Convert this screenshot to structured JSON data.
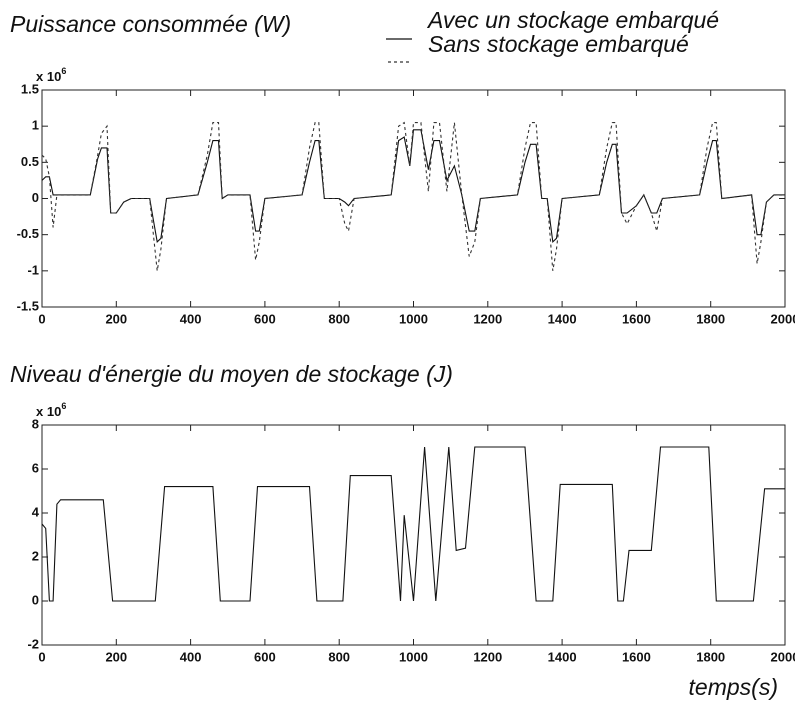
{
  "chart_data": [
    {
      "type": "line",
      "title": "Puissance consommée (W)",
      "y_scale_label": "x 10",
      "y_scale_exponent": "6",
      "x": [
        0,
        10,
        20,
        30,
        40,
        130,
        150,
        160,
        175,
        185,
        200,
        220,
        240,
        290,
        300,
        310,
        320,
        335,
        420,
        445,
        460,
        475,
        485,
        500,
        560,
        575,
        585,
        600,
        700,
        720,
        735,
        745,
        760,
        800,
        815,
        825,
        840,
        940,
        960,
        975,
        990,
        1000,
        1020,
        1040,
        1055,
        1070,
        1090,
        1110,
        1130,
        1150,
        1165,
        1180,
        1280,
        1300,
        1315,
        1330,
        1345,
        1360,
        1375,
        1385,
        1400,
        1500,
        1520,
        1535,
        1545,
        1560,
        1575,
        1600,
        1620,
        1640,
        1655,
        1670,
        1770,
        1790,
        1805,
        1815,
        1830,
        1910,
        1925,
        1935,
        1950,
        1970,
        2000
      ],
      "series": [
        {
          "name": "Avec un stockage embarqué",
          "color": "#111111",
          "linestyle": "solid",
          "values": [
            0.25,
            0.3,
            0.3,
            0.05,
            0.05,
            0.05,
            0.55,
            0.7,
            0.7,
            -0.2,
            -0.2,
            -0.05,
            0,
            0,
            -0.3,
            -0.6,
            -0.55,
            0,
            0.05,
            0.5,
            0.8,
            0.8,
            0,
            0.05,
            0.05,
            -0.45,
            -0.45,
            0,
            0.05,
            0.5,
            0.8,
            0.8,
            0,
            0,
            -0.05,
            -0.1,
            0,
            0.05,
            0.8,
            0.85,
            0.45,
            0.95,
            0.95,
            0.4,
            0.8,
            0.8,
            0.25,
            0.45,
            0.05,
            -0.45,
            -0.45,
            0,
            0.05,
            0.5,
            0.75,
            0.75,
            0,
            0,
            -0.6,
            -0.55,
            0,
            0.05,
            0.5,
            0.75,
            0.75,
            -0.2,
            -0.2,
            -0.1,
            0.05,
            -0.2,
            -0.2,
            0,
            0.05,
            0.5,
            0.8,
            0.8,
            0,
            0.05,
            -0.5,
            -0.5,
            -0.05,
            0.05,
            0.05
          ]
        },
        {
          "name": "Sans stockage embarqué",
          "color": "#333333",
          "linestyle": "dashed",
          "values": [
            0.6,
            0.55,
            0.3,
            -0.4,
            0.05,
            0.05,
            0.6,
            0.9,
            1.0,
            -0.2,
            -0.2,
            -0.05,
            0,
            0,
            -0.5,
            -1.0,
            -0.7,
            0,
            0.05,
            0.6,
            1.05,
            1.05,
            0,
            0.05,
            0.05,
            -0.85,
            -0.6,
            0,
            0.05,
            0.7,
            1.05,
            1.05,
            0,
            0,
            -0.35,
            -0.45,
            0,
            0.05,
            1.0,
            1.05,
            0.45,
            1.05,
            1.05,
            0.1,
            1.05,
            1.05,
            0.1,
            1.05,
            0.05,
            -0.8,
            -0.6,
            0,
            0.05,
            0.7,
            1.05,
            1.05,
            0,
            0,
            -1.0,
            -0.7,
            0,
            0.05,
            0.7,
            1.05,
            1.05,
            -0.2,
            -0.35,
            -0.1,
            0.05,
            -0.2,
            -0.45,
            0,
            0.05,
            0.7,
            1.05,
            1.05,
            0,
            0.05,
            -0.9,
            -0.6,
            -0.05,
            0.05,
            0.05
          ]
        }
      ],
      "xlim": [
        0,
        2000
      ],
      "xticks": [
        0,
        200,
        400,
        600,
        800,
        1000,
        1200,
        1400,
        1600,
        1800,
        2000
      ],
      "ylim": [
        -1.5,
        1.5
      ],
      "yticks": [
        -1.5,
        -1,
        -0.5,
        0,
        0.5,
        1,
        1.5
      ]
    },
    {
      "type": "line",
      "title": "Niveau d'énergie du moyen de stockage (J)",
      "xlabel": "temps(s)",
      "y_scale_label": "x 10",
      "y_scale_exponent": "6",
      "x": [
        0,
        10,
        20,
        30,
        40,
        50,
        165,
        190,
        305,
        330,
        460,
        480,
        560,
        580,
        720,
        740,
        810,
        830,
        940,
        965,
        975,
        1000,
        1030,
        1060,
        1095,
        1115,
        1140,
        1165,
        1300,
        1330,
        1375,
        1395,
        1535,
        1550,
        1565,
        1580,
        1640,
        1665,
        1795,
        1815,
        1915,
        1945,
        2000
      ],
      "series": [
        {
          "name": "Niveau d'énergie",
          "color": "#111111",
          "linestyle": "solid",
          "values": [
            3.5,
            3.3,
            0,
            0,
            4.4,
            4.6,
            4.6,
            0,
            0,
            5.2,
            5.2,
            0,
            0,
            5.2,
            5.2,
            0,
            0,
            5.7,
            5.7,
            0,
            3.9,
            0,
            7.0,
            0,
            7.0,
            2.3,
            2.4,
            7.0,
            7.0,
            0,
            0,
            5.3,
            5.3,
            0,
            0,
            2.3,
            2.3,
            7.0,
            7.0,
            0,
            0,
            5.1,
            5.1
          ]
        }
      ],
      "xlim": [
        0,
        2000
      ],
      "xticks": [
        0,
        200,
        400,
        600,
        800,
        1000,
        1200,
        1400,
        1600,
        1800,
        2000
      ],
      "ylim": [
        -2,
        8
      ],
      "yticks": [
        -2,
        0,
        2,
        4,
        6,
        8
      ]
    }
  ]
}
